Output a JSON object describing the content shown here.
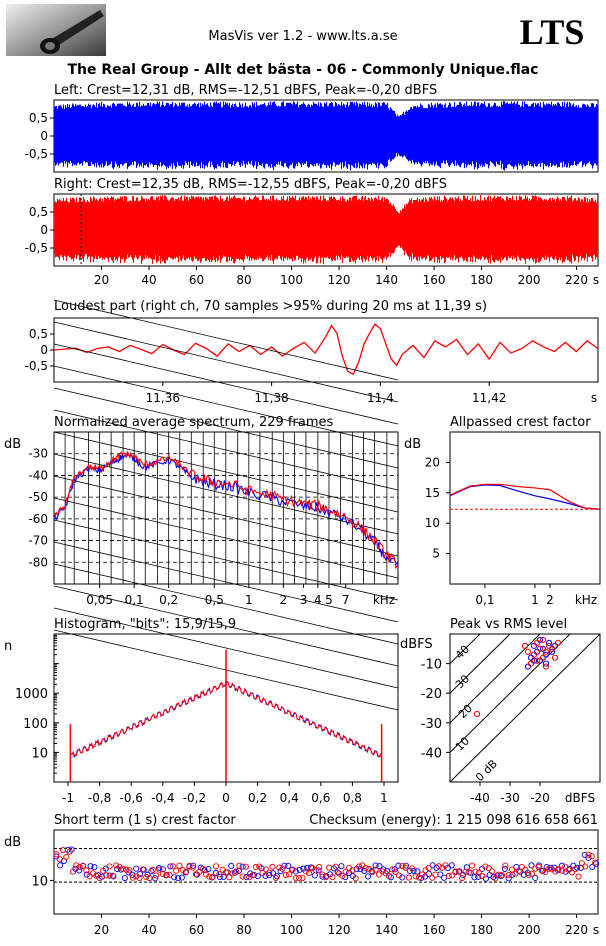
{
  "header": {
    "app_title": "MasVis ver 1.2 - www.lts.a.se",
    "brand": "LTS",
    "file_title": "The Real Group - Allt det bästa - 06 - Commonly Unique.flac"
  },
  "colors": {
    "left": "#0000ff",
    "right": "#ff0000",
    "grid": "#000000"
  },
  "chart_data": [
    {
      "id": "left-waveform",
      "type": "area",
      "title": "Left: Crest=12,31 dB, RMS=-12,51 dBFS, Peak=-0,20 dBFS",
      "ylim": [
        -1,
        1
      ],
      "yticks": [
        "0,5",
        "0",
        "-0,5"
      ],
      "xlim": [
        0,
        229
      ],
      "color": "blue",
      "envelope": [
        [
          0,
          0.88
        ],
        [
          10,
          0.92
        ],
        [
          20,
          0.95
        ],
        [
          30,
          0.96
        ],
        [
          40,
          0.97
        ],
        [
          60,
          0.96
        ],
        [
          80,
          0.96
        ],
        [
          100,
          0.97
        ],
        [
          120,
          0.96
        ],
        [
          140,
          0.95
        ],
        [
          145,
          0.55
        ],
        [
          150,
          0.9
        ],
        [
          160,
          0.95
        ],
        [
          180,
          0.97
        ],
        [
          200,
          0.97
        ],
        [
          220,
          0.96
        ],
        [
          229,
          0.9
        ]
      ]
    },
    {
      "id": "right-waveform",
      "type": "area",
      "title": "Right: Crest=12,35 dB, RMS=-12,55 dBFS, Peak=-0,20 dBFS",
      "ylim": [
        -1,
        1
      ],
      "yticks": [
        "0,5",
        "0",
        "-0,5"
      ],
      "xlim": [
        0,
        229
      ],
      "xticks": [
        "20",
        "40",
        "60",
        "80",
        "100",
        "120",
        "140",
        "160",
        "180",
        "200",
        "220"
      ],
      "xunit": "s",
      "marker_s": 11.39,
      "color": "red",
      "envelope": [
        [
          0,
          0.88
        ],
        [
          10,
          0.92
        ],
        [
          20,
          0.95
        ],
        [
          30,
          0.96
        ],
        [
          40,
          0.97
        ],
        [
          60,
          0.96
        ],
        [
          80,
          0.96
        ],
        [
          100,
          0.97
        ],
        [
          120,
          0.96
        ],
        [
          140,
          0.95
        ],
        [
          145,
          0.55
        ],
        [
          150,
          0.9
        ],
        [
          160,
          0.95
        ],
        [
          180,
          0.97
        ],
        [
          200,
          0.97
        ],
        [
          220,
          0.96
        ],
        [
          229,
          0.9
        ]
      ]
    },
    {
      "id": "loudest-part",
      "type": "line",
      "title": "Loudest part (right ch, 70 samples >95% during 20 ms at 11,39 s)",
      "ylim": [
        -1,
        1
      ],
      "yticks": [
        "0,5",
        "0",
        "-0,5"
      ],
      "xlim": [
        11.34,
        11.44
      ],
      "xticks": [
        "11,36",
        "11,38",
        "11,4",
        "11,42"
      ],
      "xunit": "s",
      "series": [
        {
          "color": "red",
          "points": [
            [
              11.34,
              0.0
            ],
            [
              11.342,
              0.03
            ],
            [
              11.344,
              0.06
            ],
            [
              11.346,
              -0.08
            ],
            [
              11.348,
              0.05
            ],
            [
              11.35,
              0.1
            ],
            [
              11.352,
              -0.05
            ],
            [
              11.354,
              0.15
            ],
            [
              11.356,
              0.02
            ],
            [
              11.358,
              -0.12
            ],
            [
              11.36,
              0.18
            ],
            [
              11.362,
              0.0
            ],
            [
              11.364,
              -0.15
            ],
            [
              11.366,
              0.22
            ],
            [
              11.368,
              0.05
            ],
            [
              11.37,
              -0.2
            ],
            [
              11.372,
              0.2
            ],
            [
              11.374,
              -0.05
            ],
            [
              11.376,
              0.15
            ],
            [
              11.378,
              -0.15
            ],
            [
              11.38,
              0.1
            ],
            [
              11.382,
              -0.2
            ],
            [
              11.384,
              0.05
            ],
            [
              11.386,
              0.25
            ],
            [
              11.388,
              -0.1
            ],
            [
              11.39,
              0.45
            ],
            [
              11.391,
              0.8
            ],
            [
              11.392,
              0.55
            ],
            [
              11.393,
              -0.2
            ],
            [
              11.394,
              -0.7
            ],
            [
              11.395,
              -0.8
            ],
            [
              11.396,
              -0.4
            ],
            [
              11.397,
              0.2
            ],
            [
              11.398,
              0.55
            ],
            [
              11.399,
              0.85
            ],
            [
              11.4,
              0.7
            ],
            [
              11.401,
              0.2
            ],
            [
              11.402,
              -0.3
            ],
            [
              11.403,
              -0.5
            ],
            [
              11.404,
              -0.15
            ],
            [
              11.406,
              0.15
            ],
            [
              11.408,
              -0.25
            ],
            [
              11.41,
              0.3
            ],
            [
              11.412,
              0.1
            ],
            [
              11.414,
              0.35
            ],
            [
              11.416,
              -0.15
            ],
            [
              11.418,
              0.2
            ],
            [
              11.42,
              -0.3
            ],
            [
              11.422,
              0.25
            ],
            [
              11.424,
              -0.1
            ],
            [
              11.426,
              0.05
            ],
            [
              11.428,
              0.3
            ],
            [
              11.43,
              0.1
            ],
            [
              11.432,
              -0.05
            ],
            [
              11.434,
              0.25
            ],
            [
              11.436,
              -0.05
            ],
            [
              11.438,
              0.3
            ],
            [
              11.44,
              0.05
            ]
          ]
        }
      ]
    },
    {
      "id": "average-spectrum",
      "type": "line",
      "title": "Normalized average spectrum, 229 frames",
      "ylabel": "dB",
      "yticks": [
        "-30",
        "-40",
        "-50",
        "-60",
        "-70",
        "-80"
      ],
      "xticks": [
        "0,05",
        "0,1",
        "0,2",
        "0,5",
        "1",
        "2",
        "3",
        "4",
        "5",
        "7"
      ],
      "xunit": "kHz",
      "xscale": "log",
      "xlim": [
        0.02,
        20
      ],
      "ylim": [
        -90,
        -20
      ],
      "series": [
        {
          "color": "blue",
          "points": [
            [
              0.02,
              -60
            ],
            [
              0.025,
              -55
            ],
            [
              0.03,
              -42
            ],
            [
              0.04,
              -37
            ],
            [
              0.05,
              -38
            ],
            [
              0.06,
              -35
            ],
            [
              0.07,
              -33
            ],
            [
              0.08,
              -31
            ],
            [
              0.1,
              -32
            ],
            [
              0.12,
              -36
            ],
            [
              0.15,
              -35
            ],
            [
              0.2,
              -33
            ],
            [
              0.25,
              -36
            ],
            [
              0.3,
              -40
            ],
            [
              0.4,
              -43
            ],
            [
              0.5,
              -44
            ],
            [
              0.7,
              -45
            ],
            [
              1,
              -48
            ],
            [
              1.5,
              -50
            ],
            [
              2,
              -52
            ],
            [
              3,
              -54
            ],
            [
              4,
              -55
            ],
            [
              5,
              -57
            ],
            [
              7,
              -60
            ],
            [
              10,
              -66
            ],
            [
              13,
              -72
            ],
            [
              16,
              -78
            ],
            [
              20,
              -82
            ]
          ]
        },
        {
          "color": "red",
          "points": [
            [
              0.02,
              -59
            ],
            [
              0.025,
              -54
            ],
            [
              0.03,
              -41
            ],
            [
              0.04,
              -36
            ],
            [
              0.05,
              -37
            ],
            [
              0.06,
              -34
            ],
            [
              0.07,
              -32
            ],
            [
              0.08,
              -30
            ],
            [
              0.1,
              -31
            ],
            [
              0.12,
              -35
            ],
            [
              0.15,
              -34
            ],
            [
              0.2,
              -32
            ],
            [
              0.25,
              -35
            ],
            [
              0.3,
              -39
            ],
            [
              0.4,
              -42
            ],
            [
              0.5,
              -43
            ],
            [
              0.7,
              -44
            ],
            [
              1,
              -47
            ],
            [
              1.5,
              -49
            ],
            [
              2,
              -51
            ],
            [
              3,
              -53
            ],
            [
              4,
              -54
            ],
            [
              5,
              -56
            ],
            [
              7,
              -59
            ],
            [
              10,
              -65
            ],
            [
              13,
              -71
            ],
            [
              16,
              -77
            ],
            [
              20,
              -81
            ]
          ]
        }
      ]
    },
    {
      "id": "allpassed-crest",
      "type": "line",
      "title": "Allpassed crest factor",
      "ylabel": "dB",
      "yticks": [
        "20",
        "15",
        "10",
        "5"
      ],
      "xticks": [
        "0,1",
        "1",
        "2"
      ],
      "xunit": "kHz",
      "xscale": "log",
      "xlim": [
        0.02,
        20
      ],
      "ylim": [
        0,
        25
      ],
      "reference_db": 12.3,
      "series": [
        {
          "color": "blue",
          "points": [
            [
              0.02,
              14.5
            ],
            [
              0.05,
              16.0
            ],
            [
              0.1,
              16.3
            ],
            [
              0.2,
              16.2
            ],
            [
              0.5,
              15.2
            ],
            [
              1,
              14.5
            ],
            [
              2,
              14.0
            ],
            [
              5,
              13.2
            ],
            [
              10,
              12.5
            ],
            [
              20,
              12.3
            ]
          ]
        },
        {
          "color": "red",
          "points": [
            [
              0.02,
              14.6
            ],
            [
              0.05,
              16.1
            ],
            [
              0.1,
              16.4
            ],
            [
              0.2,
              16.4
            ],
            [
              0.5,
              16.0
            ],
            [
              1,
              15.8
            ],
            [
              2,
              15.5
            ],
            [
              5,
              13.5
            ],
            [
              10,
              12.5
            ],
            [
              20,
              12.3
            ]
          ]
        }
      ]
    },
    {
      "id": "histogram",
      "type": "line",
      "title": "Histogram, \"bits\": 15,9/15,9",
      "ylabel": "n",
      "yticks": [
        "1000",
        "100",
        "10"
      ],
      "xticks": [
        "-1",
        "-0,8",
        "-0,6",
        "-0,4",
        "-0,2",
        "0",
        "0,2",
        "0,4",
        "0,6",
        "0,8",
        "1"
      ],
      "xlim": [
        -1,
        1
      ],
      "yscale": "log",
      "ylim": [
        1,
        100000
      ]
    },
    {
      "id": "peak-vs-rms",
      "type": "scatter",
      "title": "Peak vs RMS level",
      "ylabel": "dBFS",
      "xlabel": "dBFS",
      "yticks": [
        "-10",
        "-20",
        "-30",
        "-40"
      ],
      "xticks": [
        "-40",
        "-30",
        "-20"
      ],
      "xlim": [
        -50,
        0
      ],
      "ylim": [
        -50,
        0
      ],
      "diagonal_labels": [
        "40",
        "30",
        "20",
        "10",
        "0 dB"
      ],
      "series": [
        {
          "color": "blue",
          "points": [
            [
              -23,
              -8
            ],
            [
              -21,
              -6
            ],
            [
              -20,
              -9
            ],
            [
              -19,
              -5
            ],
            [
              -18,
              -7
            ],
            [
              -22,
              -4
            ],
            [
              -17,
              -3
            ],
            [
              -24,
              -11
            ],
            [
              -16,
              -6
            ],
            [
              -20,
              -2
            ],
            [
              -22,
              -9
            ],
            [
              -18,
              -10
            ],
            [
              -15,
              -4
            ]
          ]
        },
        {
          "color": "red",
          "points": [
            [
              -22,
              -7
            ],
            [
              -20,
              -5
            ],
            [
              -19,
              -8
            ],
            [
              -18,
              -6
            ],
            [
              -21,
              -3
            ],
            [
              -17,
              -4
            ],
            [
              -23,
              -10
            ],
            [
              -16,
              -5
            ],
            [
              -19,
              -2
            ],
            [
              -24,
              -6
            ],
            [
              -15,
              -8
            ],
            [
              -18,
              -11
            ],
            [
              -21,
              -9
            ],
            [
              -25,
              -4
            ],
            [
              -14,
              -3
            ],
            [
              -41,
              -27
            ]
          ]
        }
      ]
    },
    {
      "id": "short-term-crest",
      "type": "scatter",
      "title": "Short term (1 s) crest factor",
      "subtitle": "Checksum (energy):  1 215 098 616 658 661",
      "ylabel": "dB",
      "yticks": [
        "10"
      ],
      "xticks": [
        "20",
        "40",
        "60",
        "80",
        "100",
        "120",
        "140",
        "160",
        "180",
        "200",
        "220"
      ],
      "xunit": "s",
      "xlim": [
        0,
        229
      ],
      "ylim": [
        0,
        25
      ],
      "ref_lines": [
        19.5,
        9.5
      ]
    }
  ]
}
